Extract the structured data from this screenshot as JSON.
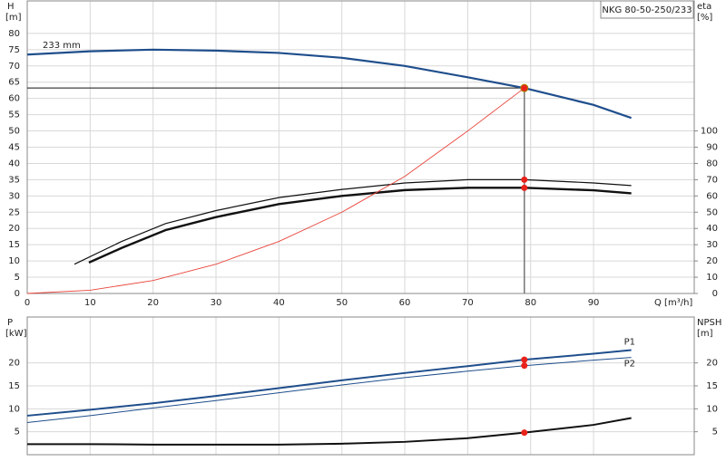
{
  "chart_data": [
    {
      "type": "line",
      "title": "NKG 80-50-250/233",
      "y_label": "H",
      "y_unit": "[m]",
      "y2_label": "eta",
      "y2_unit": "[%]",
      "x_label": "Q [m³/h]",
      "xlim": [
        0,
        106
      ],
      "xticks": [
        0,
        10,
        20,
        30,
        40,
        50,
        60,
        70,
        80,
        90
      ],
      "ylim": [
        0,
        90
      ],
      "yticks": [
        0,
        5,
        10,
        15,
        20,
        25,
        30,
        35,
        40,
        45,
        50,
        55,
        60,
        65,
        70,
        75,
        80
      ],
      "y2lim": [
        0,
        180
      ],
      "y2ticks": [
        0,
        10,
        20,
        30,
        40,
        50,
        60,
        70,
        80,
        90,
        100
      ],
      "grid": true,
      "duty_point": {
        "x": 79,
        "y": 63.2
      },
      "series": [
        {
          "name": "233 mm",
          "color": "#1f4e8c",
          "width": 2.2,
          "x": [
            0,
            10,
            20,
            30,
            40,
            50,
            60,
            70,
            79,
            90,
            96
          ],
          "values": [
            73.5,
            74.5,
            75,
            74.7,
            74,
            72.5,
            70,
            66.5,
            63.2,
            58,
            54
          ]
        },
        {
          "color": "#111111",
          "width": 1.2,
          "axis": "y2",
          "x": [
            7.5,
            15,
            22,
            30,
            40,
            50,
            60,
            70,
            79,
            90,
            96
          ],
          "values": [
            18,
            32,
            43,
            51,
            59,
            64,
            68,
            70,
            70,
            68,
            66.4
          ]
        },
        {
          "color": "#111111",
          "width": 2.4,
          "axis": "y2",
          "x": [
            9.8,
            15,
            22,
            30,
            40,
            50,
            60,
            70,
            79,
            90,
            96
          ],
          "values": [
            19,
            28,
            39,
            47,
            55,
            60,
            63.6,
            65,
            65,
            63.5,
            61.6
          ]
        },
        {
          "color": "#e8443a",
          "width": 0.9,
          "x": [
            0,
            10,
            20,
            30,
            40,
            50,
            60,
            70,
            79
          ],
          "values": [
            0,
            1,
            4,
            9,
            16,
            25,
            36,
            50,
            63.2
          ]
        }
      ]
    },
    {
      "type": "line",
      "y_label": "P",
      "y_unit": "[kW]",
      "y2_label": "NPSH",
      "y2_unit": "[m]",
      "xlim": [
        0,
        106
      ],
      "xticks": [
        0,
        10,
        20,
        30,
        40,
        50,
        60,
        70,
        80,
        90
      ],
      "ylim": [
        0,
        30
      ],
      "yticks": [
        5,
        10,
        15,
        20
      ],
      "y2lim": [
        0,
        30
      ],
      "y2ticks": [
        5,
        10,
        15,
        20
      ],
      "grid": true,
      "duty_point": {
        "x": 79
      },
      "series": [
        {
          "name": "P1",
          "color": "#1f4e8c",
          "width": 2,
          "x": [
            0,
            10,
            20,
            30,
            40,
            50,
            60,
            70,
            79,
            90,
            96
          ],
          "values": [
            8.5,
            9.8,
            11.2,
            12.8,
            14.5,
            16.2,
            17.8,
            19.3,
            20.7,
            22,
            22.8
          ]
        },
        {
          "name": "P2",
          "color": "#1f4e8c",
          "width": 1,
          "x": [
            0,
            10,
            20,
            30,
            40,
            50,
            60,
            70,
            79,
            90,
            96
          ],
          "values": [
            7,
            8.5,
            10.2,
            11.8,
            13.5,
            15.2,
            16.8,
            18.2,
            19.4,
            20.6,
            21.2
          ]
        },
        {
          "color": "#111111",
          "width": 2,
          "axis": "y2",
          "x": [
            0,
            10,
            20,
            30,
            40,
            50,
            60,
            70,
            79,
            90,
            96
          ],
          "values": [
            2.3,
            2.3,
            2.2,
            2.2,
            2.2,
            2.4,
            2.8,
            3.6,
            4.8,
            6.5,
            8
          ]
        }
      ]
    }
  ]
}
